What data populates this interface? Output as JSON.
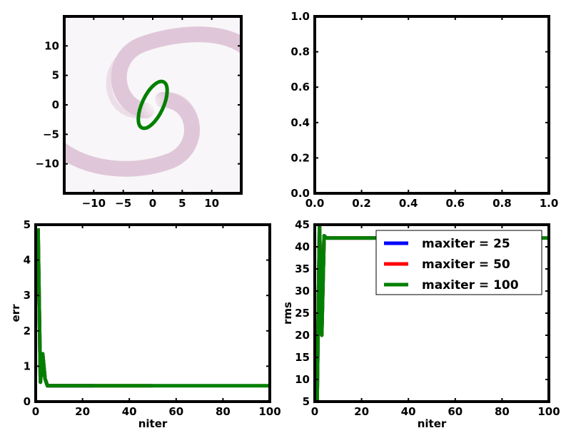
{
  "chart_data": [
    {
      "type": "image",
      "title": "",
      "xlabel": "",
      "ylabel": "",
      "xlim": [
        -15,
        15
      ],
      "ylim": [
        -15,
        15
      ],
      "xticks": [
        -10,
        -5,
        0,
        5,
        10
      ],
      "yticks": [
        -10,
        -5,
        0,
        5,
        10
      ],
      "xtick_labels": [
        "−10",
        "−5",
        "0",
        "5",
        "10"
      ],
      "ytick_labels": [
        "−10",
        "−5",
        "0",
        "5",
        "10"
      ],
      "image_description": "spiral",
      "ellipse": {
        "cx": 0,
        "cy": 0,
        "rx": 1.8,
        "ry": 4.3,
        "rotation_deg": 25,
        "color": "#008000"
      }
    },
    {
      "type": "line",
      "title": "",
      "xlabel": "",
      "ylabel": "",
      "xlim": [
        0,
        1
      ],
      "ylim": [
        0,
        1
      ],
      "xticks": [
        0,
        0.2,
        0.4,
        0.6,
        0.8,
        1.0
      ],
      "yticks": [
        0,
        0.2,
        0.4,
        0.6,
        0.8,
        1.0
      ],
      "xtick_labels": [
        "0.0",
        "0.2",
        "0.4",
        "0.6",
        "0.8",
        "1.0"
      ],
      "ytick_labels": [
        "0.0",
        "0.2",
        "0.4",
        "0.6",
        "0.8",
        "1.0"
      ],
      "series": []
    },
    {
      "type": "line",
      "title": "",
      "xlabel": "niter",
      "ylabel": "err",
      "xlim": [
        0,
        100
      ],
      "ylim": [
        0,
        5
      ],
      "xticks": [
        0,
        20,
        40,
        60,
        80,
        100
      ],
      "yticks": [
        0,
        1,
        2,
        3,
        4,
        5
      ],
      "xtick_labels": [
        "0",
        "20",
        "40",
        "60",
        "80",
        "100"
      ],
      "ytick_labels": [
        "0",
        "1",
        "2",
        "3",
        "4",
        "5"
      ],
      "series": [
        {
          "name": "maxiter = 25",
          "color": "#0000ff",
          "x": [
            1,
            2,
            3,
            4,
            5,
            6,
            8,
            10,
            15,
            20,
            25
          ],
          "y": [
            4.9,
            0.55,
            1.35,
            0.65,
            0.45,
            0.45,
            0.45,
            0.45,
            0.45,
            0.45,
            0.45
          ]
        },
        {
          "name": "maxiter = 50",
          "color": "#ff0000",
          "x": [
            1,
            2,
            3,
            4,
            5,
            6,
            8,
            10,
            20,
            30,
            40,
            50
          ],
          "y": [
            4.9,
            0.55,
            1.35,
            0.65,
            0.45,
            0.45,
            0.45,
            0.45,
            0.45,
            0.45,
            0.45,
            0.45
          ]
        },
        {
          "name": "maxiter = 100",
          "color": "#008000",
          "x": [
            1,
            2,
            3,
            4,
            5,
            6,
            8,
            10,
            20,
            30,
            40,
            50,
            60,
            70,
            80,
            90,
            100
          ],
          "y": [
            4.9,
            0.55,
            1.35,
            0.65,
            0.45,
            0.45,
            0.45,
            0.45,
            0.45,
            0.45,
            0.45,
            0.45,
            0.45,
            0.45,
            0.45,
            0.45,
            0.45
          ]
        }
      ]
    },
    {
      "type": "line",
      "title": "",
      "xlabel": "niter",
      "ylabel": "rms",
      "xlim": [
        0,
        100
      ],
      "ylim": [
        5,
        45
      ],
      "xticks": [
        0,
        20,
        40,
        60,
        80,
        100
      ],
      "yticks": [
        5,
        10,
        15,
        20,
        25,
        30,
        35,
        40,
        45
      ],
      "xtick_labels": [
        "0",
        "20",
        "40",
        "60",
        "80",
        "100"
      ],
      "ytick_labels": [
        "5",
        "10",
        "15",
        "20",
        "25",
        "30",
        "35",
        "40",
        "45"
      ],
      "legend": {
        "placement": "top-right",
        "entries": [
          "maxiter = 25",
          "maxiter = 50",
          "maxiter = 100"
        ]
      },
      "series": [
        {
          "name": "maxiter = 25",
          "color": "#0000ff",
          "x": [
            1,
            2,
            3,
            4,
            5,
            6,
            8,
            10,
            15,
            20,
            25
          ],
          "y": [
            5,
            45,
            20,
            42.5,
            42,
            42,
            42,
            42,
            42,
            42,
            42
          ]
        },
        {
          "name": "maxiter = 50",
          "color": "#ff0000",
          "x": [
            1,
            2,
            3,
            4,
            5,
            6,
            8,
            10,
            20,
            30,
            40,
            50
          ],
          "y": [
            5,
            45,
            20,
            42.5,
            42,
            42,
            42,
            42,
            42,
            42,
            42,
            42
          ]
        },
        {
          "name": "maxiter = 100",
          "color": "#008000",
          "x": [
            1,
            2,
            3,
            4,
            5,
            6,
            8,
            10,
            20,
            30,
            40,
            50,
            60,
            70,
            80,
            90,
            100
          ],
          "y": [
            5,
            45,
            20,
            42.5,
            42,
            42,
            42,
            42,
            42,
            42,
            42,
            42,
            42,
            42,
            42,
            42,
            42
          ]
        }
      ]
    }
  ]
}
